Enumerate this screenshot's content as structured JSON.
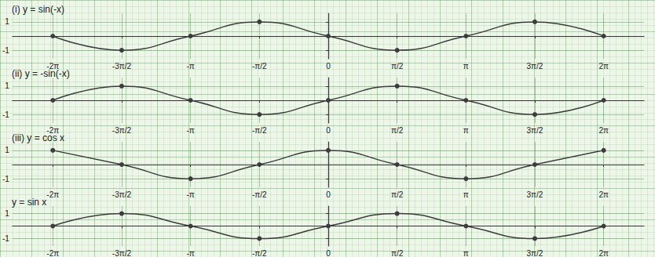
{
  "chart_data": [
    {
      "type": "line",
      "title": "(i) y = sin(-x)",
      "color": "#3c3c3c",
      "grid": true,
      "marker": "circle",
      "x": [
        -6.28,
        -4.71,
        -3.14,
        -1.57,
        0,
        1.57,
        3.14,
        4.71,
        6.28
      ],
      "values": [
        0,
        -1,
        0,
        1,
        0,
        -1,
        0,
        1,
        0
      ],
      "xlim": [
        -7.2,
        7.2
      ],
      "ylim": [
        -1.6,
        1.6
      ],
      "xticks": [
        {
          "value": -6.28,
          "label": "-2π"
        },
        {
          "value": -4.71,
          "label": "-3π/2"
        },
        {
          "value": -3.14,
          "label": "-π"
        },
        {
          "value": -1.57,
          "label": "-π/2"
        },
        0,
        {
          "value": 1.57,
          "label": "π/2"
        },
        {
          "value": 3.14,
          "label": "π"
        },
        {
          "value": 4.71,
          "label": "3π/2"
        },
        {
          "value": 6.28,
          "label": "2π"
        }
      ],
      "yticks": [
        -1,
        1
      ]
    },
    {
      "type": "line",
      "title": "(ii) y = -sin(-x)",
      "color": "#3c3c3c",
      "grid": true,
      "marker": "circle",
      "x": [
        -6.28,
        -4.71,
        -3.14,
        -1.57,
        0,
        1.57,
        3.14,
        4.71,
        6.28
      ],
      "values": [
        0,
        1,
        0,
        -1,
        0,
        1,
        0,
        -1,
        0
      ],
      "xlim": [
        -7.2,
        7.2
      ],
      "ylim": [
        -1.6,
        1.6
      ],
      "xticks": [
        {
          "value": -6.28,
          "label": "-2π"
        },
        {
          "value": -4.71,
          "label": "-3π/2"
        },
        {
          "value": -3.14,
          "label": "-π"
        },
        {
          "value": -1.57,
          "label": "-π/2"
        },
        0,
        {
          "value": 1.57,
          "label": "π/2"
        },
        {
          "value": 3.14,
          "label": "π"
        },
        {
          "value": 4.71,
          "label": "3π/2"
        },
        {
          "value": 6.28,
          "label": "2π"
        }
      ],
      "yticks": [
        -1,
        1
      ]
    },
    {
      "type": "line",
      "title": "(iii) y = cos x",
      "color": "#3c3c3c",
      "grid": true,
      "marker": "circle",
      "x": [
        -6.28,
        -4.71,
        -3.14,
        -1.57,
        0,
        1.57,
        3.14,
        4.71,
        6.28
      ],
      "values": [
        1,
        0,
        -1,
        0,
        1,
        0,
        -1,
        0,
        1
      ],
      "xlim": [
        -7.2,
        7.2
      ],
      "ylim": [
        -1.6,
        1.6
      ],
      "xticks": [
        {
          "value": -6.28,
          "label": "-2π"
        },
        {
          "value": -4.71,
          "label": "-3π/2"
        },
        {
          "value": -3.14,
          "label": "-π"
        },
        {
          "value": -1.57,
          "label": "-π/2"
        },
        0,
        {
          "value": 1.57,
          "label": "π/2"
        },
        {
          "value": 3.14,
          "label": "π"
        },
        {
          "value": 4.71,
          "label": "3π/2"
        },
        {
          "value": 6.28,
          "label": "2π"
        }
      ],
      "yticks": [
        -1,
        1
      ]
    },
    {
      "type": "line",
      "title": "y = sin x",
      "color": "#3c3c3c",
      "grid": true,
      "marker": "circle",
      "x": [
        -6.28,
        -4.71,
        -3.14,
        -1.57,
        0,
        1.57,
        3.14,
        4.71,
        6.28
      ],
      "values": [
        0,
        1,
        0,
        -1,
        0,
        1,
        0,
        -1,
        0
      ],
      "xlim": [
        -7.2,
        7.2
      ],
      "ylim": [
        -1.6,
        1.6
      ],
      "xticks": [
        {
          "value": -6.28,
          "label": "-2π"
        },
        {
          "value": -4.71,
          "label": "-3π/2"
        },
        {
          "value": -3.14,
          "label": "-π"
        },
        {
          "value": -1.57,
          "label": "-π/2"
        },
        0,
        {
          "value": 1.57,
          "label": "π/2"
        },
        {
          "value": 3.14,
          "label": "π"
        },
        {
          "value": 4.71,
          "label": "3π/2"
        },
        {
          "value": 6.28,
          "label": "2π"
        }
      ],
      "yticks": [
        -1,
        1
      ]
    }
  ]
}
